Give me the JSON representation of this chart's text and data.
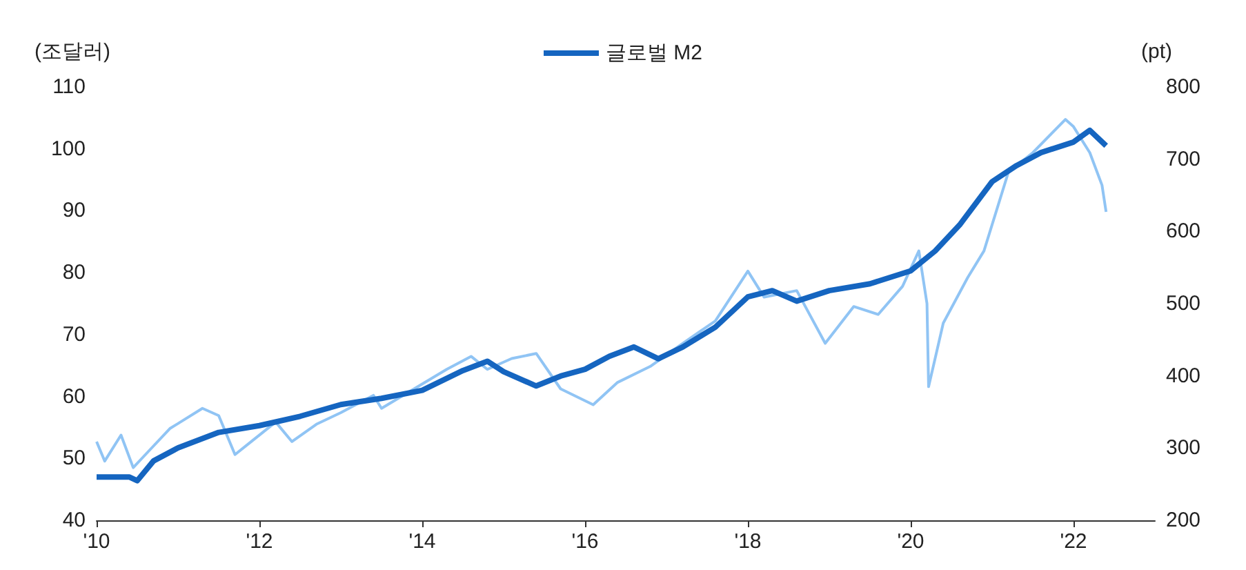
{
  "chart_data": {
    "type": "line",
    "ylabel": "(조달러)",
    "y2label": "(pt)",
    "legend": "top",
    "grid": false,
    "xlim": [
      2010,
      2023
    ],
    "xticks": [
      {
        "value": 2010,
        "label": "'10"
      },
      {
        "value": 2012,
        "label": "'12"
      },
      {
        "value": 2014,
        "label": "'14"
      },
      {
        "value": 2016,
        "label": "'16"
      },
      {
        "value": 2018,
        "label": "'18"
      },
      {
        "value": 2020,
        "label": "'20"
      },
      {
        "value": 2022,
        "label": "'22"
      }
    ],
    "ylim": [
      40,
      110
    ],
    "yticks": [
      40,
      50,
      60,
      70,
      80,
      90,
      100,
      110
    ],
    "y2lim": [
      200,
      800
    ],
    "y2ticks": [
      200,
      300,
      400,
      500,
      600,
      700,
      800
    ],
    "series": [
      {
        "name": "글로벌 M2",
        "color": "#1565c0",
        "x": [
          2010,
          2010.4,
          2010.5,
          2010.7,
          2011,
          2011.5,
          2012,
          2012.5,
          2013,
          2013.5,
          2014,
          2014.5,
          2014.8,
          2015,
          2015.4,
          2015.7,
          2016,
          2016.3,
          2016.6,
          2016.9,
          2017.2,
          2017.6,
          2018,
          2018.3,
          2018.6,
          2019,
          2019.5,
          2020,
          2020.3,
          2020.6,
          2021,
          2021.3,
          2021.6,
          2022,
          2022.2,
          2022.4
        ],
        "values": [
          47,
          47,
          46.4,
          49.6,
          51.7,
          54.2,
          55.3,
          56.8,
          58.7,
          59.7,
          61,
          64.2,
          65.7,
          64,
          61.7,
          63.3,
          64.4,
          66.5,
          68,
          66.1,
          68,
          71.2,
          76.1,
          77.1,
          75.4,
          77.1,
          78.2,
          80.3,
          83.5,
          87.7,
          94.7,
          97.3,
          99.4,
          101.1,
          103,
          100.5
        ]
      },
      {
        "axis": "y2",
        "color": "#90c4f4",
        "x": [
          2010,
          2010.1,
          2010.3,
          2010.45,
          2010.6,
          2010.9,
          2011.3,
          2011.5,
          2011.7,
          2011.9,
          2012.2,
          2012.4,
          2012.7,
          2013,
          2013.4,
          2013.5,
          2013.9,
          2014.3,
          2014.6,
          2014.8,
          2015.1,
          2015.4,
          2015.7,
          2016.1,
          2016.4,
          2016.8,
          2017.2,
          2017.6,
          2018,
          2018.2,
          2018.6,
          2018.95,
          2019.3,
          2019.6,
          2019.9,
          2020.1,
          2020.2,
          2020.22,
          2020.4,
          2020.7,
          2020.9,
          2021.2,
          2021.5,
          2021.9,
          2022,
          2022.2,
          2022.35,
          2022.4
        ],
        "values": [
          309,
          282,
          318,
          273,
          291,
          327,
          355,
          345,
          291,
          309,
          336,
          309,
          333,
          349,
          373,
          355,
          382,
          409,
          427,
          409,
          424,
          431,
          382,
          360,
          391,
          413,
          445,
          476,
          545,
          509,
          518,
          445,
          496,
          485,
          524,
          573,
          500,
          385,
          473,
          536,
          573,
          682,
          709,
          755,
          745,
          709,
          664,
          627
        ]
      }
    ]
  }
}
